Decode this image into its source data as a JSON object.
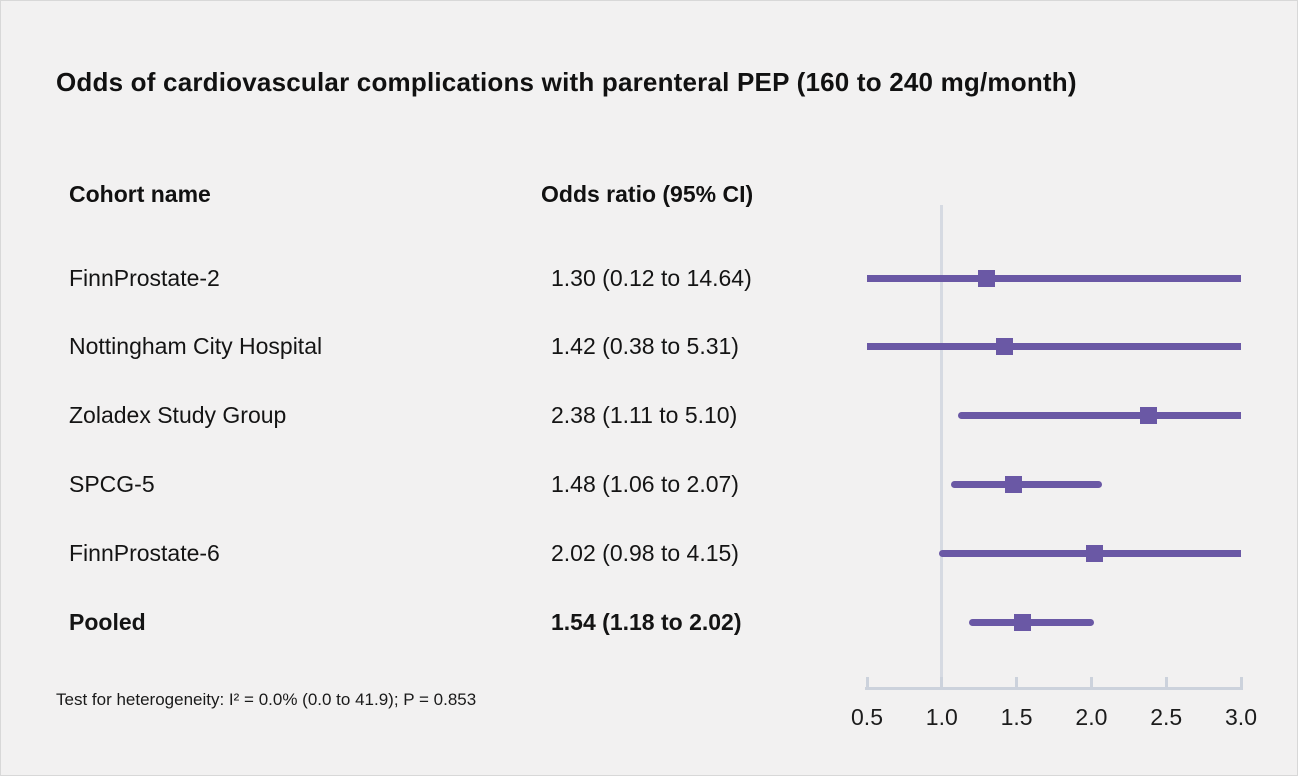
{
  "title": "Odds of cardiovascular complications with parenteral PEP (160 to 240 mg/month)",
  "table": {
    "col1_header": "Cohort name",
    "col2_header": "Odds ratio (95% CI)"
  },
  "footnote": "Test for heterogeneity: I² = 0.0% (0.0 to 41.9); P = 0.853",
  "colors": {
    "marker_purple": "#6a58a5",
    "reference_line": "#d6dae2",
    "axis": "#ccd2dc",
    "background": "#f2f1f1",
    "text": "#121212"
  },
  "chart_data": {
    "type": "forest",
    "title": "Odds of cardiovascular complications with parenteral PEP (160 to 240 mg/month)",
    "xlabel": "",
    "xlim": [
      0.5,
      3.0
    ],
    "scale": "linear",
    "reference_line": 1.0,
    "axis_ticks": [
      0.5,
      1.0,
      1.5,
      2.0,
      2.5,
      3.0
    ],
    "tick_labels": [
      "0.5",
      "1.0",
      "1.5",
      "2.0",
      "2.5",
      "3.0"
    ],
    "legend": "none",
    "grid": "off",
    "rows": [
      {
        "label": "FinnProstate-2",
        "display": "1.30 (0.12 to 14.64)",
        "or": 1.3,
        "ci_low": 0.12,
        "ci_high": 14.64,
        "bold": false
      },
      {
        "label": "Nottingham City Hospital",
        "display": "1.42 (0.38 to 5.31)",
        "or": 1.42,
        "ci_low": 0.38,
        "ci_high": 5.31,
        "bold": false
      },
      {
        "label": "Zoladex Study Group",
        "display": "2.38 (1.11 to 5.10)",
        "or": 2.38,
        "ci_low": 1.11,
        "ci_high": 5.1,
        "bold": false
      },
      {
        "label": "SPCG-5",
        "display": "1.48 (1.06 to 2.07)",
        "or": 1.48,
        "ci_low": 1.06,
        "ci_high": 2.07,
        "bold": false
      },
      {
        "label": "FinnProstate-6",
        "display": "2.02 (0.98 to 4.15)",
        "or": 2.02,
        "ci_low": 0.98,
        "ci_high": 4.15,
        "bold": false
      },
      {
        "label": "Pooled",
        "display": "1.54 (1.18 to 2.02)",
        "or": 1.54,
        "ci_low": 1.18,
        "ci_high": 2.02,
        "bold": true
      }
    ]
  }
}
